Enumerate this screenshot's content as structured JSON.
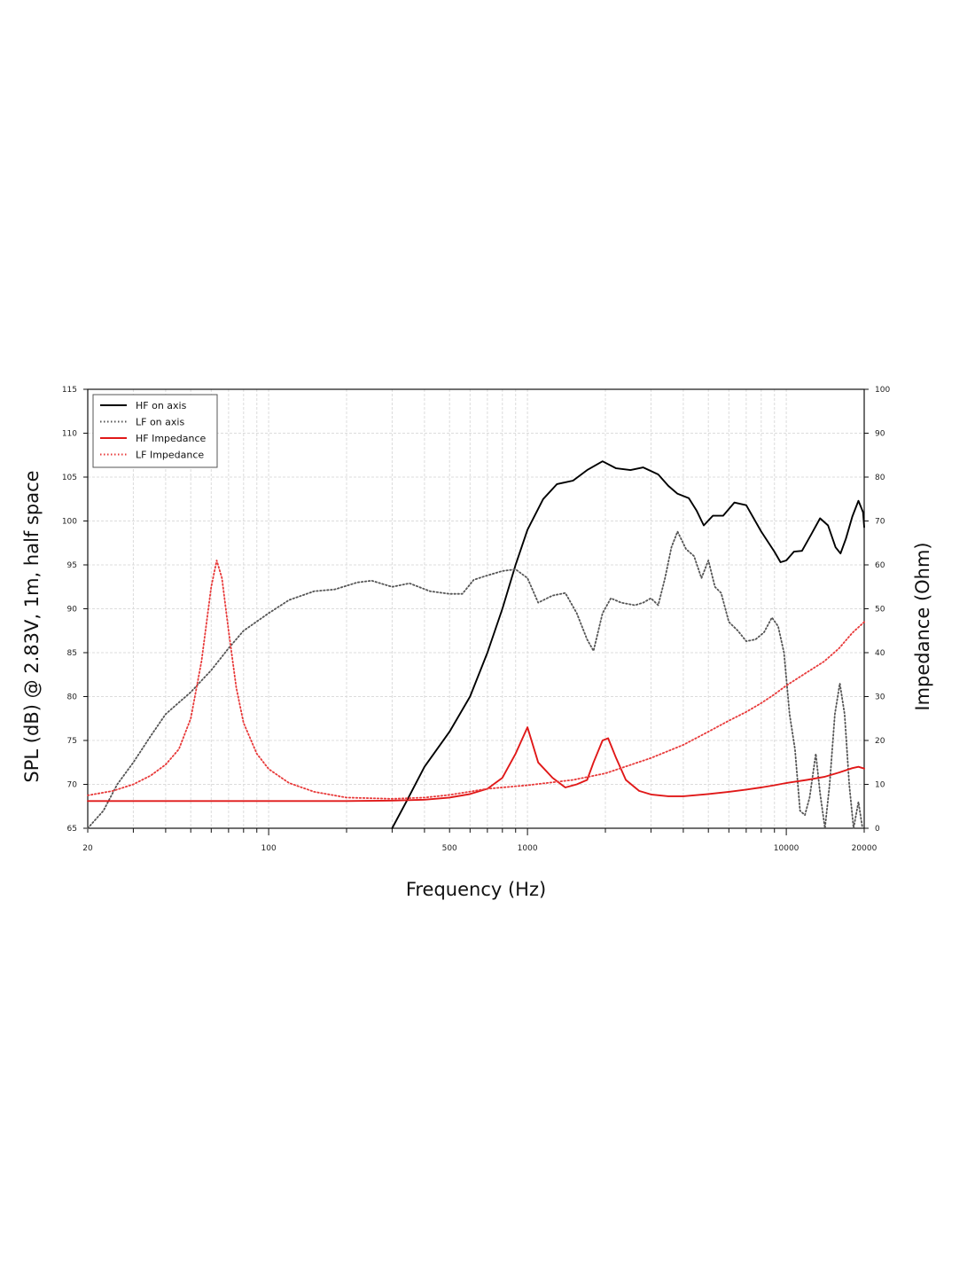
{
  "chart_data": {
    "type": "line",
    "xlabel": "Frequency (Hz)",
    "ylabel_left": "SPL (dB) @ 2.83V, 1m, half space",
    "ylabel_right": "Impedance (Ohm)",
    "x_scale": "log",
    "xlim": [
      20,
      20000
    ],
    "ylim_left": [
      65,
      115
    ],
    "ylim_right": [
      0,
      100
    ],
    "grid": true,
    "legend_position": "top-left",
    "x_ticks": [
      20,
      100,
      500,
      1000,
      10000,
      20000
    ],
    "y_ticks_left": [
      65,
      70,
      75,
      80,
      85,
      90,
      95,
      100,
      105,
      110,
      115
    ],
    "y_ticks_right": [
      0,
      10,
      20,
      30,
      40,
      50,
      60,
      70,
      80,
      90,
      100
    ],
    "series": [
      {
        "name": "HF on axis",
        "axis": "left",
        "color": "#000000",
        "style": "solid",
        "points": [
          [
            300,
            65
          ],
          [
            340,
            68
          ],
          [
            400,
            72
          ],
          [
            500,
            76
          ],
          [
            600,
            80
          ],
          [
            700,
            85
          ],
          [
            800,
            90
          ],
          [
            900,
            95
          ],
          [
            1000,
            99
          ],
          [
            1150,
            102.5
          ],
          [
            1300,
            104.2
          ],
          [
            1500,
            104.6
          ],
          [
            1700,
            105.8
          ],
          [
            1950,
            106.8
          ],
          [
            2200,
            106
          ],
          [
            2500,
            105.8
          ],
          [
            2800,
            106.1
          ],
          [
            3200,
            105.3
          ],
          [
            3500,
            104
          ],
          [
            3800,
            103.1
          ],
          [
            4200,
            102.6
          ],
          [
            4500,
            101.2
          ],
          [
            4800,
            99.5
          ],
          [
            5200,
            100.6
          ],
          [
            5700,
            100.6
          ],
          [
            6300,
            102.1
          ],
          [
            7000,
            101.8
          ],
          [
            8000,
            98.8
          ],
          [
            9000,
            96.5
          ],
          [
            9500,
            95.3
          ],
          [
            10000,
            95.5
          ],
          [
            10700,
            96.5
          ],
          [
            11500,
            96.6
          ],
          [
            12500,
            98.5
          ],
          [
            13500,
            100.3
          ],
          [
            14500,
            99.5
          ],
          [
            15500,
            97
          ],
          [
            16200,
            96.3
          ],
          [
            17000,
            98
          ],
          [
            18000,
            100.5
          ],
          [
            19000,
            102.3
          ],
          [
            19800,
            101
          ],
          [
            20000,
            99.3
          ]
        ]
      },
      {
        "name": "LF on axis",
        "axis": "left",
        "color": "#555555",
        "style": "dotted",
        "points": [
          [
            20,
            65
          ],
          [
            23,
            67
          ],
          [
            26,
            70
          ],
          [
            30,
            72.5
          ],
          [
            35,
            75.5
          ],
          [
            40,
            78
          ],
          [
            50,
            80.5
          ],
          [
            60,
            83
          ],
          [
            70,
            85.5
          ],
          [
            80,
            87.5
          ],
          [
            100,
            89.5
          ],
          [
            120,
            91
          ],
          [
            150,
            92
          ],
          [
            180,
            92.2
          ],
          [
            220,
            93
          ],
          [
            250,
            93.2
          ],
          [
            300,
            92.5
          ],
          [
            350,
            92.9
          ],
          [
            420,
            92
          ],
          [
            500,
            91.7
          ],
          [
            560,
            91.7
          ],
          [
            620,
            93.3
          ],
          [
            700,
            93.8
          ],
          [
            800,
            94.3
          ],
          [
            900,
            94.5
          ],
          [
            1000,
            93.5
          ],
          [
            1100,
            90.7
          ],
          [
            1250,
            91.5
          ],
          [
            1400,
            91.8
          ],
          [
            1550,
            89.5
          ],
          [
            1700,
            86.5
          ],
          [
            1800,
            85.2
          ],
          [
            1950,
            89.5
          ],
          [
            2100,
            91.2
          ],
          [
            2300,
            90.7
          ],
          [
            2600,
            90.4
          ],
          [
            2800,
            90.7
          ],
          [
            3000,
            91.2
          ],
          [
            3200,
            90.4
          ],
          [
            3400,
            93.5
          ],
          [
            3600,
            97
          ],
          [
            3800,
            98.8
          ],
          [
            4100,
            96.8
          ],
          [
            4400,
            96
          ],
          [
            4700,
            93.5
          ],
          [
            5000,
            95.5
          ],
          [
            5300,
            92.5
          ],
          [
            5600,
            91.8
          ],
          [
            6000,
            88.5
          ],
          [
            6500,
            87.5
          ],
          [
            7000,
            86.3
          ],
          [
            7600,
            86.5
          ],
          [
            8200,
            87.3
          ],
          [
            8800,
            89
          ],
          [
            9300,
            88
          ],
          [
            9800,
            85
          ],
          [
            10300,
            78
          ],
          [
            10800,
            74
          ],
          [
            11300,
            67
          ],
          [
            11800,
            66.5
          ],
          [
            12300,
            68.5
          ],
          [
            13000,
            73.5
          ],
          [
            13500,
            69
          ],
          [
            14100,
            65
          ],
          [
            14700,
            70
          ],
          [
            15400,
            78
          ],
          [
            16100,
            81.5
          ],
          [
            16800,
            78
          ],
          [
            17500,
            70
          ],
          [
            18200,
            65
          ],
          [
            19000,
            68
          ],
          [
            19700,
            65
          ]
        ]
      },
      {
        "name": "HF Impedance",
        "axis": "right",
        "color": "#e01818",
        "style": "solid",
        "points": [
          [
            20,
            6.2
          ],
          [
            100,
            6.2
          ],
          [
            200,
            6.2
          ],
          [
            300,
            6.3
          ],
          [
            400,
            6.5
          ],
          [
            500,
            7
          ],
          [
            600,
            7.8
          ],
          [
            700,
            9
          ],
          [
            800,
            11.5
          ],
          [
            900,
            17
          ],
          [
            1000,
            23
          ],
          [
            1100,
            15
          ],
          [
            1250,
            11.5
          ],
          [
            1400,
            9.3
          ],
          [
            1550,
            10
          ],
          [
            1700,
            11
          ],
          [
            1800,
            15
          ],
          [
            1950,
            20
          ],
          [
            2050,
            20.5
          ],
          [
            2200,
            16
          ],
          [
            2400,
            11
          ],
          [
            2700,
            8.5
          ],
          [
            3000,
            7.7
          ],
          [
            3500,
            7.3
          ],
          [
            4000,
            7.3
          ],
          [
            5000,
            7.8
          ],
          [
            6000,
            8.3
          ],
          [
            7000,
            8.8
          ],
          [
            8000,
            9.3
          ],
          [
            9000,
            9.8
          ],
          [
            10000,
            10.3
          ],
          [
            12000,
            11
          ],
          [
            14000,
            11.7
          ],
          [
            16000,
            12.7
          ],
          [
            18000,
            13.7
          ],
          [
            19000,
            14
          ],
          [
            20000,
            13.6
          ]
        ]
      },
      {
        "name": "LF Impedance",
        "axis": "right",
        "color": "#e83a3a",
        "style": "dotted",
        "points": [
          [
            20,
            7.5
          ],
          [
            25,
            8.5
          ],
          [
            30,
            10
          ],
          [
            35,
            12
          ],
          [
            40,
            14.5
          ],
          [
            45,
            18
          ],
          [
            50,
            25
          ],
          [
            55,
            38
          ],
          [
            60,
            55
          ],
          [
            63,
            61
          ],
          [
            66,
            57
          ],
          [
            70,
            45
          ],
          [
            75,
            32
          ],
          [
            80,
            24
          ],
          [
            90,
            17
          ],
          [
            100,
            13.5
          ],
          [
            120,
            10.3
          ],
          [
            150,
            8.3
          ],
          [
            200,
            7
          ],
          [
            300,
            6.7
          ],
          [
            400,
            7
          ],
          [
            500,
            7.6
          ],
          [
            700,
            9
          ],
          [
            1000,
            9.8
          ],
          [
            1500,
            11
          ],
          [
            2000,
            12.5
          ],
          [
            3000,
            16
          ],
          [
            4000,
            19
          ],
          [
            5000,
            22
          ],
          [
            6000,
            24.5
          ],
          [
            7000,
            26.5
          ],
          [
            8000,
            28.5
          ],
          [
            9000,
            30.5
          ],
          [
            10000,
            32.5
          ],
          [
            12000,
            35.5
          ],
          [
            14000,
            38
          ],
          [
            16000,
            41
          ],
          [
            18000,
            44.5
          ],
          [
            20000,
            47
          ]
        ]
      }
    ]
  }
}
